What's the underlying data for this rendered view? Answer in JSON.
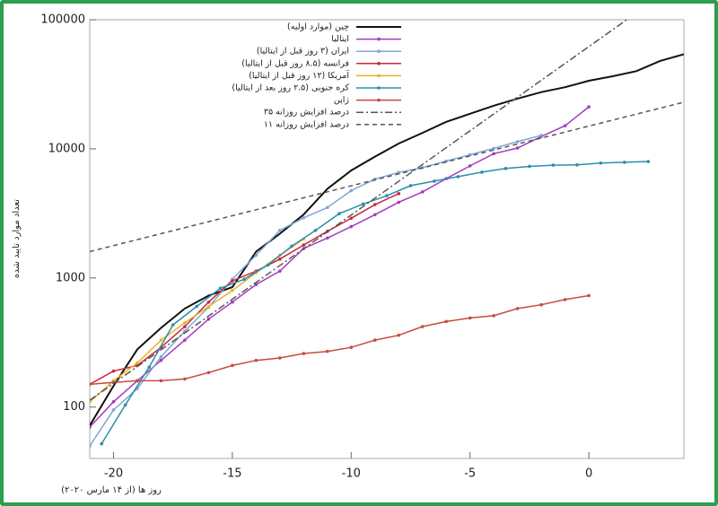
{
  "chart_data": {
    "type": "line",
    "xlabel": "روز ها (از ۱۴ مارس ۲۰۲۰)",
    "ylabel": "تعداد موارد تایید شده",
    "log_y": true,
    "xlim": [
      -21,
      4
    ],
    "ylim": [
      40,
      100000
    ],
    "xticks": [
      -20,
      -15,
      -10,
      -5,
      0
    ],
    "yticks": [
      100,
      1000,
      10000,
      100000
    ],
    "legend": "top-left",
    "series": [
      {
        "name": "چین (موارد اولیه)",
        "color": "#111111",
        "dash": "solid",
        "markers": false,
        "x": [
          -21,
          -20,
          -19,
          -18,
          -17,
          -16,
          -15,
          -14,
          -13,
          -12,
          -11,
          -10,
          -9,
          -8,
          -7,
          -6,
          -5,
          -4,
          -3,
          -2,
          -1,
          0,
          1,
          2,
          3,
          4
        ],
        "values": [
          72,
          146,
          280,
          410,
          580,
          730,
          850,
          1600,
          2200,
          3100,
          4900,
          6800,
          8700,
          11000,
          13300,
          16200,
          18700,
          21600,
          24500,
          27500,
          30000,
          33700,
          36500,
          40000,
          48000,
          54000
        ]
      },
      {
        "name": "ایتالیا",
        "color": "#a23bc0",
        "dash": "solid",
        "markers": true,
        "x": [
          -21,
          -20,
          -19,
          -18,
          -17,
          -16,
          -15,
          -14,
          -13,
          -12,
          -11,
          -10,
          -9,
          -8,
          -7,
          -6,
          -5,
          -4,
          -3,
          -2,
          -1,
          0
        ],
        "values": [
          70,
          110,
          160,
          230,
          330,
          480,
          650,
          890,
          1130,
          1690,
          2040,
          2500,
          3090,
          3860,
          4640,
          5880,
          7380,
          9170,
          10150,
          12460,
          15110,
          21160
        ]
      },
      {
        "name": "ایران (۳ روز قبل از ایتالیا)",
        "color": "#7fa6d8",
        "dash": "solid",
        "markers": true,
        "x": [
          -21,
          -20,
          -19,
          -18,
          -17,
          -16,
          -15,
          -14,
          -13,
          -12,
          -11,
          -10,
          -9,
          -8,
          -7,
          -6,
          -5,
          -4,
          -3,
          -2
        ],
        "values": [
          50,
          95,
          139,
          245,
          388,
          593,
          978,
          1501,
          2336,
          2922,
          3513,
          4747,
          5823,
          6566,
          7161,
          8042,
          9000,
          10075,
          11364,
          12729
        ]
      },
      {
        "name": "فرانسه (۸.۵ روز قبل از ایتالیا)",
        "color": "#c8283c",
        "dash": "solid",
        "markers": true,
        "x": [
          -21,
          -20,
          -19,
          -18,
          -17,
          -16,
          -15,
          -14,
          -13,
          -12,
          -11,
          -10,
          -9,
          -8
        ],
        "values": [
          150,
          190,
          210,
          290,
          420,
          650,
          950,
          1130,
          1400,
          1800,
          2300,
          2900,
          3700,
          4500
        ]
      },
      {
        "name": "آمریکا (۱۲ روز قبل از ایتالیا)",
        "color": "#e8b32a",
        "dash": "solid",
        "markers": true,
        "x": [
          -21,
          -20,
          -19,
          -18,
          -17,
          -16,
          -15,
          -14,
          -13,
          -12
        ],
        "values": [
          110,
          160,
          220,
          330,
          450,
          600,
          800,
          1100,
          1500,
          2000
        ]
      },
      {
        "name": "کره جنوبی (۲.۵ روز بعد از ایتالیا)",
        "color": "#2a8fa8",
        "dash": "solid",
        "markers": true,
        "x": [
          -20.5,
          -19.5,
          -18.5,
          -17.5,
          -16.5,
          -15.5,
          -14.5,
          -13.5,
          -12.5,
          -11.5,
          -10.5,
          -9.5,
          -8.5,
          -7.5,
          -6.5,
          -5.5,
          -4.5,
          -3.5,
          -2.5,
          -1.5,
          -0.5,
          0.5,
          1.5,
          2.5
        ],
        "values": [
          52,
          104,
          204,
          433,
          602,
          833,
          977,
          1261,
          1766,
          2337,
          3150,
          3736,
          4335,
          5186,
          5621,
          6088,
          6593,
          7041,
          7313,
          7478,
          7513,
          7755,
          7869,
          7979
        ]
      },
      {
        "name": "ژاپن",
        "color": "#c84a3c",
        "dash": "solid",
        "markers": true,
        "x": [
          -21,
          -20,
          -19,
          -18,
          -17,
          -16,
          -15,
          -14,
          -13,
          -12,
          -11,
          -10,
          -9,
          -8,
          -7,
          -6,
          -5,
          -4,
          -3,
          -2,
          -1,
          0
        ],
        "values": [
          150,
          155,
          160,
          160,
          165,
          185,
          210,
          230,
          240,
          260,
          270,
          290,
          330,
          360,
          420,
          460,
          490,
          510,
          580,
          620,
          680,
          730
        ]
      },
      {
        "name": "۳۵ درصد افزایش روزانه",
        "color": "#555555",
        "dash": "dashdot",
        "markers": false,
        "x": [
          -21,
          1.6
        ],
        "values": [
          113,
          100000
        ]
      },
      {
        "name": "۱۱ درصد افزایش روزانه",
        "color": "#555555",
        "dash": "dashed",
        "markers": false,
        "x": [
          -21,
          4
        ],
        "values": [
          1600,
          23000
        ]
      }
    ]
  }
}
